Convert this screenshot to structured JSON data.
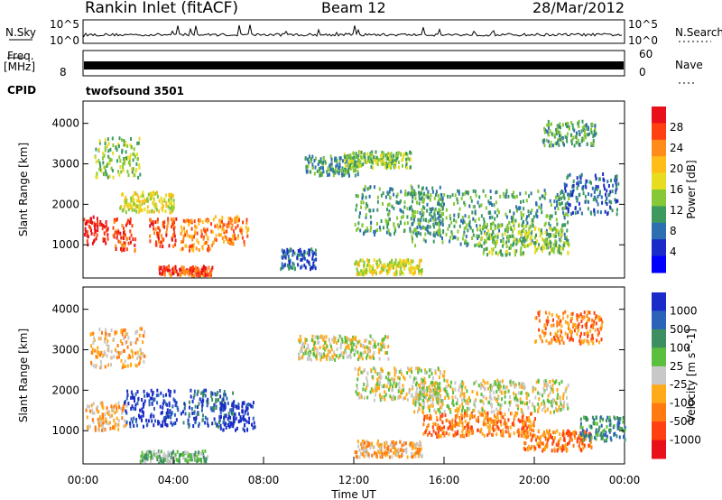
{
  "header": {
    "site": "Rankin Inlet (fitACF)",
    "beam": "Beam 12",
    "date": "28/Mar/2012"
  },
  "noise_panel": {
    "left_label": "N.Sky",
    "right_label": "N.Search",
    "y_top_tick": "10^5",
    "y_bottom_tick": "10^0"
  },
  "freq_panel": {
    "left_label_line1": "Freq.",
    "left_label_line2": "[MHz]",
    "left_tick": "8",
    "right_label": "Nave",
    "right_top_tick": "60",
    "right_bottom_tick": "0"
  },
  "cpid": {
    "label": "CPID",
    "value": "twofsound 3501"
  },
  "chart_data": [
    {
      "type": "heatmap",
      "name": "power",
      "ylabel": "Slant Range [km]",
      "yticks": [
        1000,
        2000,
        3000,
        4000
      ],
      "ylim": [
        180,
        4550
      ],
      "xlim": [
        0,
        24
      ],
      "colorbar_label": "Power [dB]",
      "colorbar_ticks": [
        "28",
        "24",
        "20",
        "16",
        "12",
        "8",
        "4"
      ],
      "colorbar_colors": [
        "#e8101a",
        "#ff4010",
        "#ff8c1a",
        "#ffbd1a",
        "#e7dc1f",
        "#86c836",
        "#3c9a5e",
        "#2d6fb0",
        "#1a2cc8",
        "#0000ff"
      ]
    },
    {
      "type": "heatmap",
      "name": "velocity",
      "ylabel": "Slant Range [km]",
      "yticks": [
        1000,
        2000,
        3000,
        4000
      ],
      "ylim": [
        180,
        4550
      ],
      "xlim": [
        0,
        24
      ],
      "xlabel": "Time UT",
      "xtick_labels": [
        "00:00",
        "04:00",
        "08:00",
        "12:00",
        "16:00",
        "20:00",
        "00:00"
      ],
      "colorbar_label": "Velocity [m s^-1]",
      "colorbar_ticks": [
        "1000",
        "500",
        "100",
        "25",
        "-25",
        "-100",
        "-500",
        "-1000"
      ],
      "colorbar_colors": [
        "#1a2cc8",
        "#2b63b8",
        "#3d8f62",
        "#5abf3c",
        "#c8c8c8",
        "#ffaa1a",
        "#ff7a10",
        "#ff4010",
        "#e8101a"
      ]
    }
  ]
}
